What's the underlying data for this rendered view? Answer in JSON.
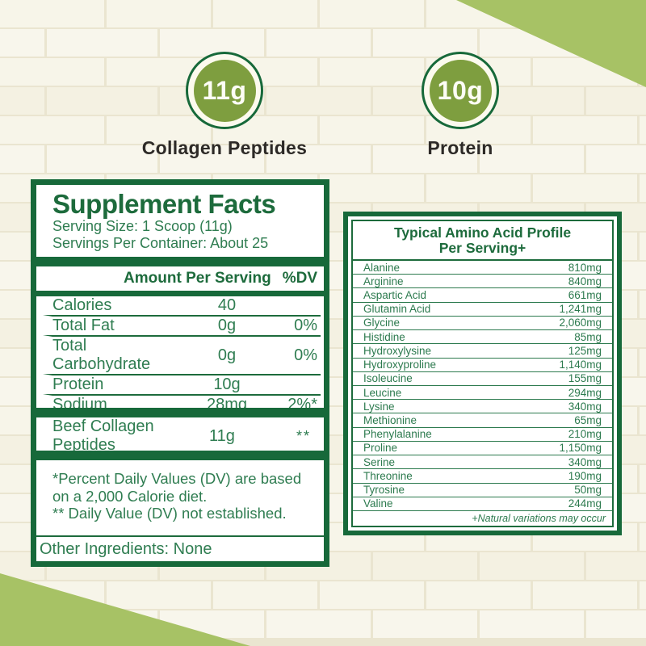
{
  "badges": [
    {
      "value": "11g",
      "label": "Collagen Peptides"
    },
    {
      "value": "10g",
      "label": "Protein"
    }
  ],
  "supplement_facts": {
    "title": "Supplement Facts",
    "serving_size": "Serving Size: 1 Scoop (11g)",
    "servings_per_container": "Servings Per Container: About 25",
    "amount_header": "Amount Per Serving",
    "dv_header": "%DV",
    "rows": [
      {
        "name": "Calories",
        "amount": "40",
        "dv": ""
      },
      {
        "name": "Total Fat",
        "amount": "0g",
        "dv": "0%"
      },
      {
        "name": "Total Carbohydrate",
        "amount": "0g",
        "dv": "0%"
      },
      {
        "name": "Protein",
        "amount": "10g",
        "dv": ""
      },
      {
        "name": "Sodium",
        "amount": "28mg",
        "dv": "2%*"
      }
    ],
    "ingredient_row": {
      "name": "Beef Collagen Peptides",
      "amount": "11g",
      "dv": "**"
    },
    "footnotes": [
      "*Percent Daily Values (DV) are based on a 2,000 Calorie diet.",
      "** Daily Value (DV) not established."
    ],
    "other_ingredients": "Other Ingredients: None"
  },
  "amino_profile": {
    "title_line1": "Typical Amino Acid Profile",
    "title_line2": "Per Serving+",
    "rows": [
      {
        "name": "Alanine",
        "amount": "810mg"
      },
      {
        "name": "Arginine",
        "amount": "840mg"
      },
      {
        "name": "Aspartic Acid",
        "amount": "661mg"
      },
      {
        "name": "Glutamin Acid",
        "amount": "1,241mg"
      },
      {
        "name": "Glycine",
        "amount": "2,060mg"
      },
      {
        "name": "Histidine",
        "amount": "85mg"
      },
      {
        "name": "Hydroxylysine",
        "amount": "125mg"
      },
      {
        "name": "Hydroxyproline",
        "amount": "1,140mg"
      },
      {
        "name": "Isoleucine",
        "amount": "155mg"
      },
      {
        "name": "Leucine",
        "amount": "294mg"
      },
      {
        "name": "Lysine",
        "amount": "340mg"
      },
      {
        "name": "Methionine",
        "amount": "65mg"
      },
      {
        "name": "Phenylalanine",
        "amount": "210mg"
      },
      {
        "name": "Proline",
        "amount": "1,150mg"
      },
      {
        "name": "Serine",
        "amount": "340mg"
      },
      {
        "name": "Threonine",
        "amount": "190mg"
      },
      {
        "name": "Tyrosine",
        "amount": "50mg"
      },
      {
        "name": "Valine",
        "amount": "244mg"
      }
    ],
    "footnote": "+Natural variations may occur"
  },
  "colors": {
    "dark_green": "#17693a",
    "body_green": "#2f7d51",
    "badge_olive": "#7e9e3f",
    "corner_light_green": "#a7c265",
    "wall_base": "#f7f5e9",
    "wall_mortar": "#eae5d0"
  }
}
